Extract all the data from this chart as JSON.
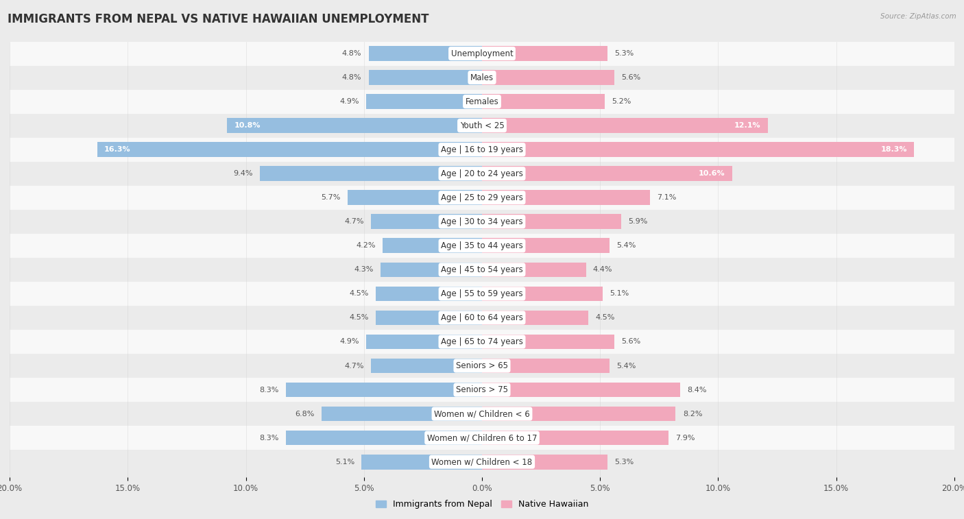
{
  "title": "IMMIGRANTS FROM NEPAL VS NATIVE HAWAIIAN UNEMPLOYMENT",
  "source": "Source: ZipAtlas.com",
  "categories": [
    "Unemployment",
    "Males",
    "Females",
    "Youth < 25",
    "Age | 16 to 19 years",
    "Age | 20 to 24 years",
    "Age | 25 to 29 years",
    "Age | 30 to 34 years",
    "Age | 35 to 44 years",
    "Age | 45 to 54 years",
    "Age | 55 to 59 years",
    "Age | 60 to 64 years",
    "Age | 65 to 74 years",
    "Seniors > 65",
    "Seniors > 75",
    "Women w/ Children < 6",
    "Women w/ Children 6 to 17",
    "Women w/ Children < 18"
  ],
  "nepal_values": [
    4.8,
    4.8,
    4.9,
    10.8,
    16.3,
    9.4,
    5.7,
    4.7,
    4.2,
    4.3,
    4.5,
    4.5,
    4.9,
    4.7,
    8.3,
    6.8,
    8.3,
    5.1
  ],
  "hawaii_values": [
    5.3,
    5.6,
    5.2,
    12.1,
    18.3,
    10.6,
    7.1,
    5.9,
    5.4,
    4.4,
    5.1,
    4.5,
    5.6,
    5.4,
    8.4,
    8.2,
    7.9,
    5.3
  ],
  "nepal_color": "#96BEE0",
  "hawaii_color": "#F2A8BC",
  "nepal_label": "Immigrants from Nepal",
  "hawaii_label": "Native Hawaiian",
  "x_max": 20.0,
  "row_bg_odd": "#ebebeb",
  "row_bg_even": "#f8f8f8",
  "background_color": "#ebebeb",
  "title_fontsize": 12,
  "label_fontsize": 8.5,
  "value_fontsize": 8,
  "axis_fontsize": 8.5
}
